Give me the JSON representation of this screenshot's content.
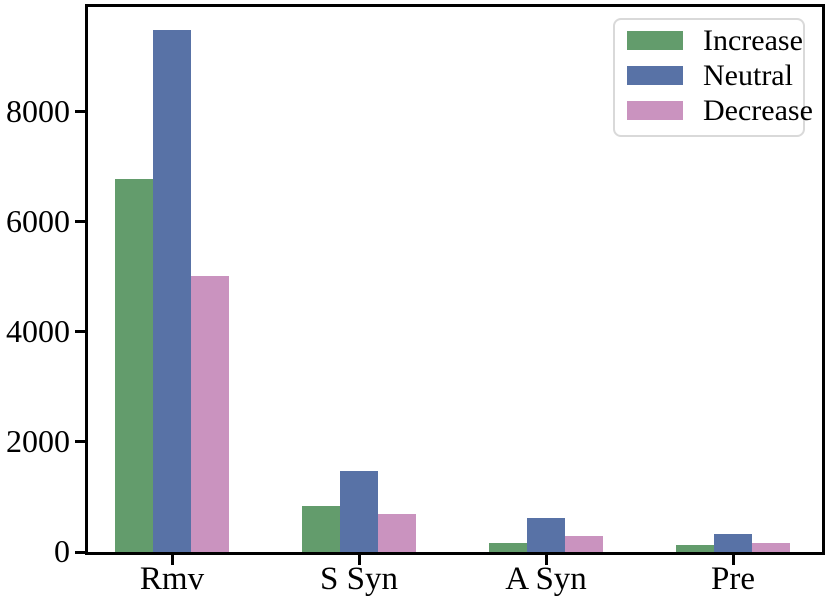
{
  "chart_data": {
    "type": "bar",
    "title": "",
    "xlabel": "",
    "ylabel": "",
    "categories": [
      "Rmv",
      "S Syn",
      "A Syn",
      "Pre"
    ],
    "series": [
      {
        "name": "Increase",
        "color": "#639C6C",
        "values": [
          6770,
          840,
          165,
          125
        ]
      },
      {
        "name": "Neutral",
        "color": "#5872A6",
        "values": [
          9480,
          1470,
          625,
          335
        ]
      },
      {
        "name": "Decrease",
        "color": "#CA93BF",
        "values": [
          5020,
          700,
          285,
          170
        ]
      }
    ],
    "yticks": [
      0,
      2000,
      4000,
      6000,
      8000
    ],
    "ylim": [
      0,
      9900
    ],
    "grid": false,
    "legend": {
      "position": "upper-right"
    },
    "colors": {
      "axis": "#000000",
      "text": "#000000",
      "legend_border": "#D9D9D9",
      "background": "#FFFFFF"
    }
  }
}
